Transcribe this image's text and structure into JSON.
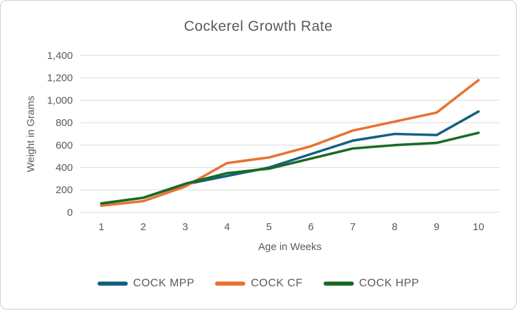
{
  "chart": {
    "title": "Cockerel Growth Rate",
    "x_axis_title": "Age in Weeks",
    "y_axis_title": "Weight in Grams"
  },
  "chart_data": {
    "type": "line",
    "title": "Cockerel Growth Rate",
    "xlabel": "Age in Weeks",
    "ylabel": "Weight in Grams",
    "categories": [
      1,
      2,
      3,
      4,
      5,
      6,
      7,
      8,
      9,
      10
    ],
    "series": [
      {
        "name": "COCK MPP",
        "color": "#156082",
        "values": [
          80,
          130,
          250,
          325,
          400,
          520,
          640,
          700,
          690,
          900
        ]
      },
      {
        "name": "COCK CF",
        "color": "#E97132",
        "values": [
          60,
          100,
          230,
          440,
          490,
          590,
          730,
          810,
          890,
          1180
        ]
      },
      {
        "name": "COCK HPP",
        "color": "#196B24",
        "values": [
          80,
          130,
          255,
          350,
          390,
          480,
          570,
          600,
          620,
          710
        ]
      }
    ],
    "ylim": [
      0,
      1400
    ],
    "y_ticks": [
      0,
      200,
      400,
      600,
      800,
      1000,
      1200,
      1400
    ],
    "grid": true,
    "legend_position": "bottom"
  },
  "colors": {
    "text": "#595959",
    "gridline": "#D9D9D9",
    "frame_border": "#CFCFCF",
    "background": "#FFFFFF"
  }
}
